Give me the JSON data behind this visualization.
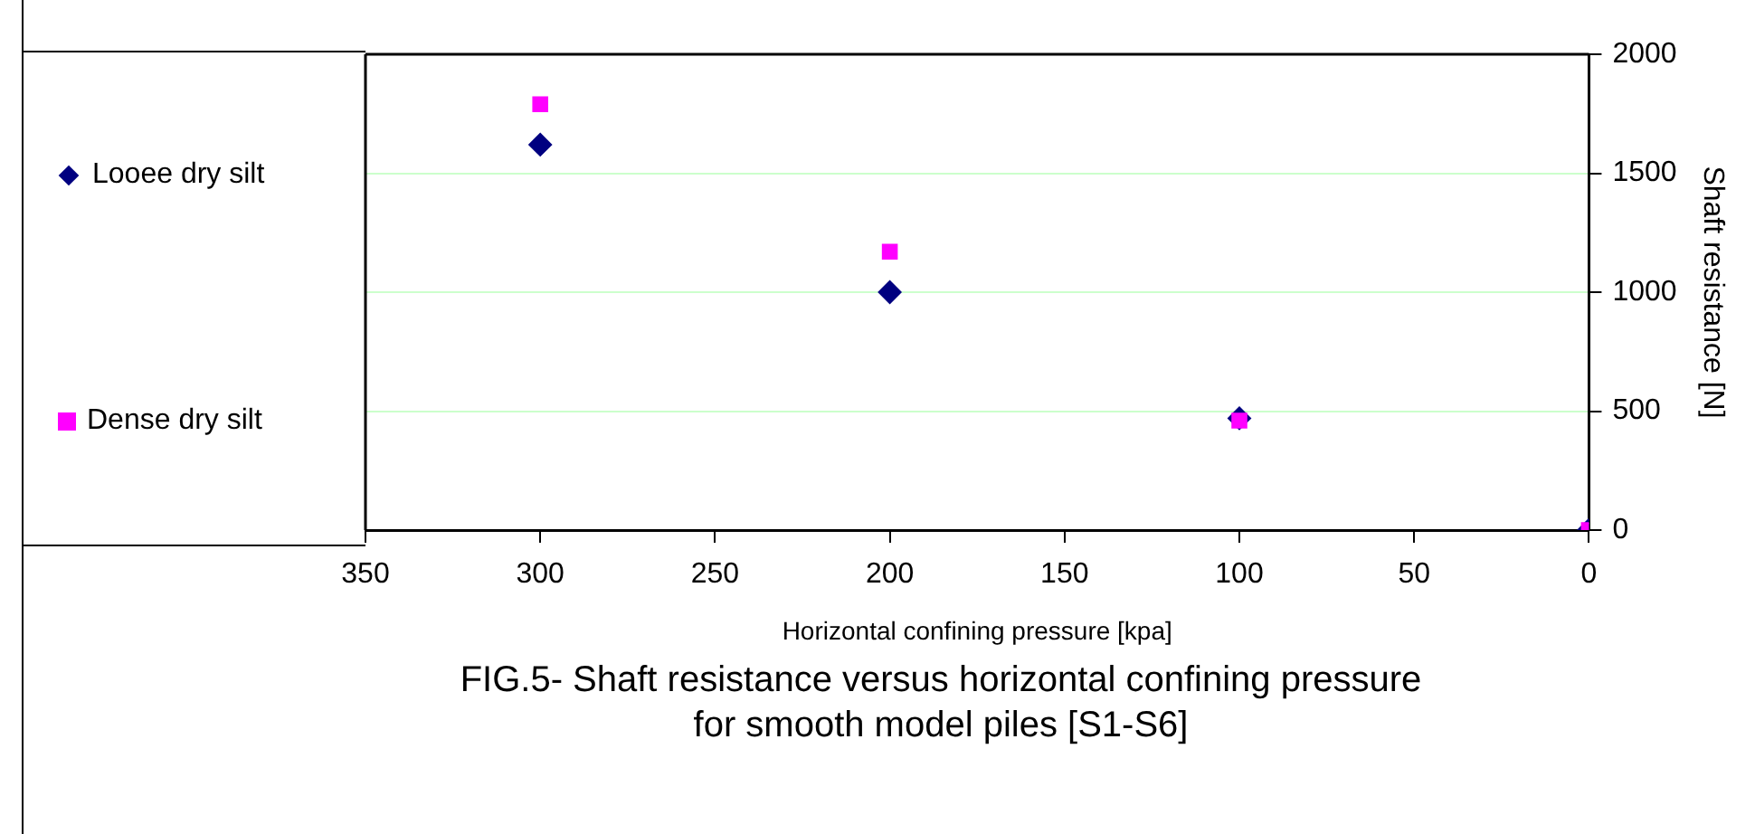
{
  "chart_data": {
    "type": "scatter",
    "title": "FIG.5- Shaft resistance versus horizontal confining  pressure for smooth model piles [S1-S6]",
    "xlabel": "Horizontal confining pressure [kpa]",
    "ylabel": "Shaft resistance [N]",
    "xlim": [
      350,
      0
    ],
    "xticks": [
      350,
      300,
      250,
      200,
      150,
      100,
      50,
      0
    ],
    "ylim": [
      0,
      2000
    ],
    "yticks": [
      0,
      500,
      1000,
      1500,
      2000
    ],
    "grid": "y",
    "legend": "left",
    "series": [
      {
        "name": "Looee dry silt",
        "color": "#000080",
        "marker": "diamond",
        "x": [
          300,
          200,
          100,
          0
        ],
        "values": [
          1620,
          1000,
          470,
          0
        ]
      },
      {
        "name": "Dense dry silt",
        "color": "#ff00ff",
        "marker": "square",
        "x": [
          300,
          200,
          100,
          0
        ],
        "values": [
          1790,
          1170,
          460,
          0
        ]
      }
    ]
  }
}
